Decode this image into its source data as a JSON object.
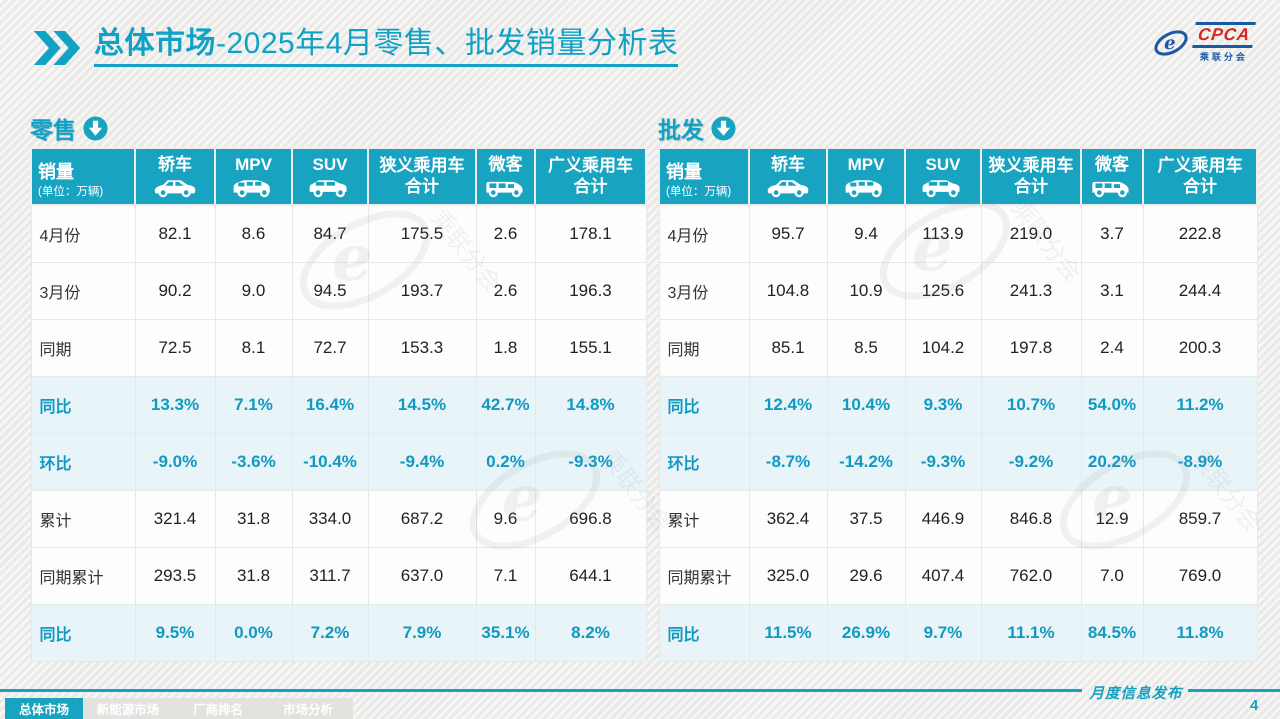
{
  "title": {
    "strong": "总体市场",
    "rest": "-2025年4月零售、批发销量分析表"
  },
  "logo": {
    "name": "CPCA",
    "cn": "乘联分会"
  },
  "icons": {
    "title_marker": "double-chevron-icon",
    "section_marker": "arrow-down-circle-icon",
    "sedan": "sedan-icon",
    "mpv": "mpv-icon",
    "suv": "suv-icon",
    "microvan": "microvan-icon",
    "logo_mark": "cpca-swoosh-icon",
    "watermark": "cpca-watermark-logo"
  },
  "colors": {
    "accent": "#18a4c1",
    "title_accent": "#0fa2c6",
    "highlight_row_bg": "#e8f4f8",
    "highlight_text": "#1099c2",
    "logo_red": "#d7261f",
    "logo_blue": "#1c59a5"
  },
  "tables": [
    {
      "id": "retail",
      "section_title": "零售",
      "header": {
        "label": "销量",
        "unit": "(单位：万辆)",
        "columns": [
          {
            "label": "轿车",
            "icon": "sedan-icon"
          },
          {
            "label": "MPV",
            "icon": "mpv-icon"
          },
          {
            "label": "SUV",
            "icon": "suv-icon"
          },
          {
            "label": "狭义乘用车",
            "label2": "合计"
          },
          {
            "label": "微客",
            "icon": "microvan-icon"
          },
          {
            "label": "广义乘用车",
            "label2": "合计"
          }
        ]
      },
      "rows": [
        {
          "label": "4月份",
          "highlight": false,
          "values": [
            "82.1",
            "8.6",
            "84.7",
            "175.5",
            "2.6",
            "178.1"
          ]
        },
        {
          "label": "3月份",
          "highlight": false,
          "values": [
            "90.2",
            "9.0",
            "94.5",
            "193.7",
            "2.6",
            "196.3"
          ]
        },
        {
          "label": "同期",
          "highlight": false,
          "values": [
            "72.5",
            "8.1",
            "72.7",
            "153.3",
            "1.8",
            "155.1"
          ]
        },
        {
          "label": "同比",
          "highlight": true,
          "values": [
            "13.3%",
            "7.1%",
            "16.4%",
            "14.5%",
            "42.7%",
            "14.8%"
          ]
        },
        {
          "label": "环比",
          "highlight": true,
          "values": [
            "-9.0%",
            "-3.6%",
            "-10.4%",
            "-9.4%",
            "0.2%",
            "-9.3%"
          ]
        },
        {
          "label": "累计",
          "highlight": false,
          "values": [
            "321.4",
            "31.8",
            "334.0",
            "687.2",
            "9.6",
            "696.8"
          ]
        },
        {
          "label": "同期累计",
          "highlight": false,
          "values": [
            "293.5",
            "31.8",
            "311.7",
            "637.0",
            "7.1",
            "644.1"
          ]
        },
        {
          "label": "同比",
          "highlight": true,
          "values": [
            "9.5%",
            "0.0%",
            "7.2%",
            "7.9%",
            "35.1%",
            "8.2%"
          ]
        }
      ]
    },
    {
      "id": "wholesale",
      "section_title": "批发",
      "header": {
        "label": "销量",
        "unit": "(单位：万辆)",
        "columns": [
          {
            "label": "轿车",
            "icon": "sedan-icon"
          },
          {
            "label": "MPV",
            "icon": "mpv-icon"
          },
          {
            "label": "SUV",
            "icon": "suv-icon"
          },
          {
            "label": "狭义乘用车",
            "label2": "合计"
          },
          {
            "label": "微客",
            "icon": "microvan-icon"
          },
          {
            "label": "广义乘用车",
            "label2": "合计"
          }
        ]
      },
      "rows": [
        {
          "label": "4月份",
          "highlight": false,
          "values": [
            "95.7",
            "9.4",
            "113.9",
            "219.0",
            "3.7",
            "222.8"
          ]
        },
        {
          "label": "3月份",
          "highlight": false,
          "values": [
            "104.8",
            "10.9",
            "125.6",
            "241.3",
            "3.1",
            "244.4"
          ]
        },
        {
          "label": "同期",
          "highlight": false,
          "values": [
            "85.1",
            "8.5",
            "104.2",
            "197.8",
            "2.4",
            "200.3"
          ]
        },
        {
          "label": "同比",
          "highlight": true,
          "values": [
            "12.4%",
            "10.4%",
            "9.3%",
            "10.7%",
            "54.0%",
            "11.2%"
          ]
        },
        {
          "label": "环比",
          "highlight": true,
          "values": [
            "-8.7%",
            "-14.2%",
            "-9.3%",
            "-9.2%",
            "20.2%",
            "-8.9%"
          ]
        },
        {
          "label": "累计",
          "highlight": false,
          "values": [
            "362.4",
            "37.5",
            "446.9",
            "846.8",
            "12.9",
            "859.7"
          ]
        },
        {
          "label": "同期累计",
          "highlight": false,
          "values": [
            "325.0",
            "29.6",
            "407.4",
            "762.0",
            "7.0",
            "769.0"
          ]
        },
        {
          "label": "同比",
          "highlight": true,
          "values": [
            "11.5%",
            "26.9%",
            "9.7%",
            "11.1%",
            "84.5%",
            "11.8%"
          ]
        }
      ]
    }
  ],
  "nav": {
    "tabs": [
      {
        "label": "总体市场",
        "active": true
      },
      {
        "label": "新能源市场",
        "active": false
      },
      {
        "label": "厂商排名",
        "active": false
      },
      {
        "label": "市场分析",
        "active": false
      }
    ]
  },
  "footer": {
    "publish_label": "月度信息发布",
    "page_number": "4"
  }
}
